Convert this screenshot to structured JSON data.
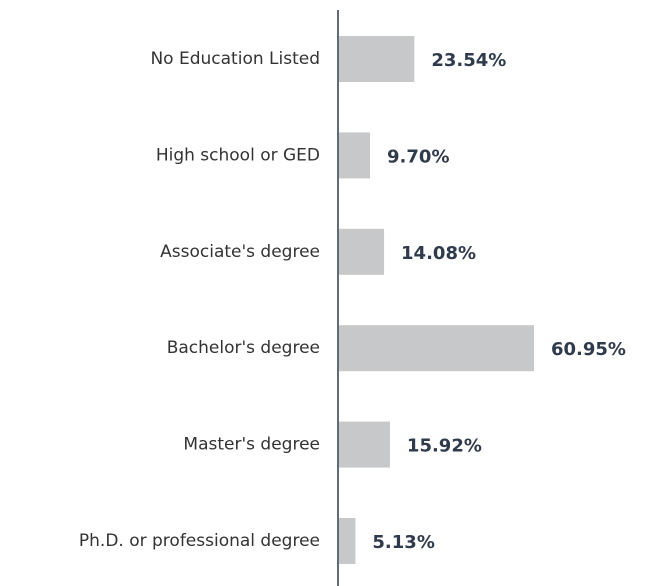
{
  "chart_data": {
    "type": "bar",
    "orientation": "horizontal",
    "categories": [
      "No Education Listed",
      "High school or GED",
      "Associate's degree",
      "Bachelor's degree",
      "Master's degree",
      "Ph.D. or professional degree"
    ],
    "values": [
      23.54,
      9.7,
      14.08,
      60.95,
      15.92,
      5.13
    ],
    "value_labels": [
      "23.54%",
      "9.70%",
      "14.08%",
      "60.95%",
      "15.92%",
      "5.13%"
    ],
    "color": "#c6c8ca"
  }
}
